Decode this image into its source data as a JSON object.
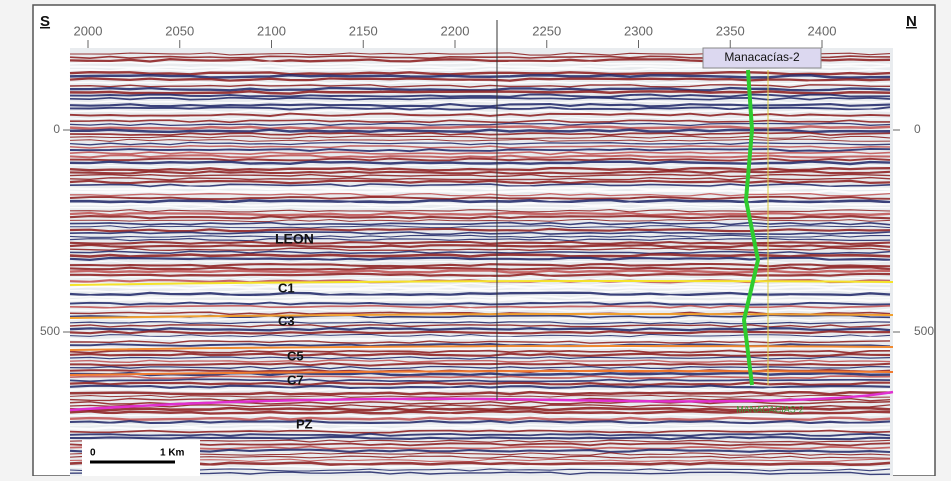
{
  "header": {
    "left": "S",
    "right": "N"
  },
  "top_axis": {
    "ticks": [
      2000,
      2050,
      2100,
      2150,
      2200,
      2250,
      2300,
      2350,
      2400
    ]
  },
  "left_axis": {
    "ticks": [
      0,
      500
    ]
  },
  "right_axis": {
    "ticks": [
      0,
      500
    ]
  },
  "horizons": [
    {
      "label": "LEON"
    },
    {
      "label": "C1"
    },
    {
      "label": "C3"
    },
    {
      "label": "C5"
    },
    {
      "label": "C7"
    },
    {
      "label": "PZ"
    }
  ],
  "well": {
    "name": "Manacacías-2",
    "marker": "MANACACIAS-2"
  },
  "scale_bar": {
    "start": "0",
    "end": "1 Km"
  }
}
